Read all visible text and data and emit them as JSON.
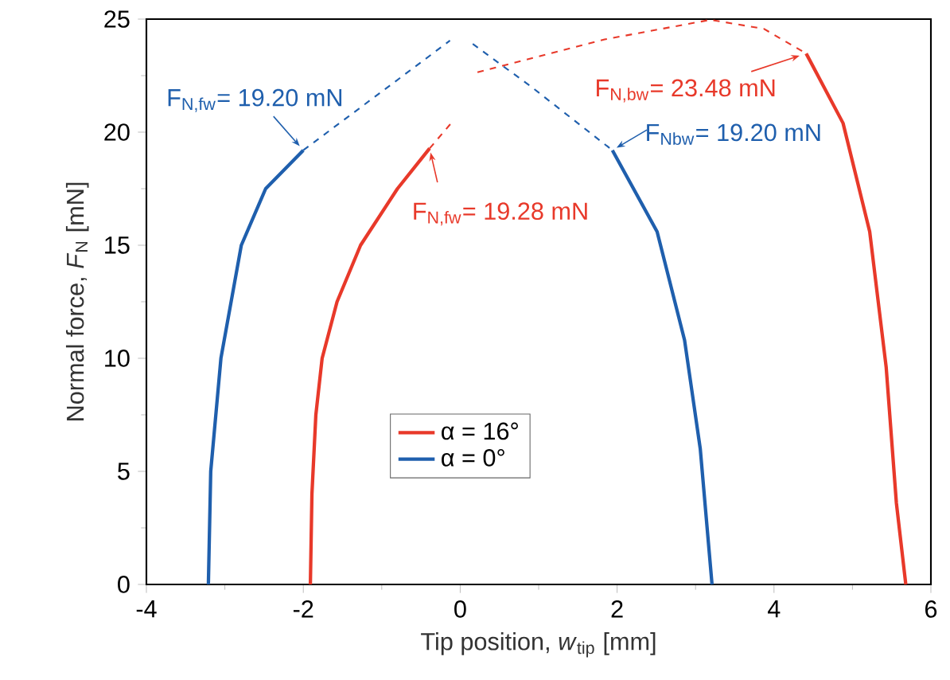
{
  "chart_data": {
    "type": "line",
    "xlabel": "Tip position, *w*$_{tip}$  [mm]",
    "ylabel": "Normal force, *F*$_{N}$  [mN]",
    "xlim": [
      -4,
      6
    ],
    "ylim": [
      0,
      25
    ],
    "xticks": [
      -4,
      -2,
      0,
      2,
      4,
      6
    ],
    "yticks": [
      0,
      5,
      10,
      15,
      20,
      25
    ],
    "legend": "bottom",
    "marker": "none",
    "grid": false,
    "series": [
      {
        "name": "α = 16°",
        "color": "#e8392a",
        "line_style": "solid",
        "x": [
          -1.91,
          -1.89,
          -1.84,
          -1.76,
          -1.57,
          -1.27,
          -0.8,
          -0.39
        ],
        "values": [
          0,
          4,
          7.5,
          10,
          12.5,
          15,
          17.5,
          19.28
        ]
      },
      {
        "color": "#e8392a",
        "line_style": "solid",
        "x": [
          4.41,
          4.88,
          5.22,
          5.43,
          5.56,
          5.68
        ],
        "values": [
          23.48,
          20.4,
          15.6,
          9.6,
          3.6,
          0
        ]
      },
      {
        "color": "#e8392a",
        "line_style": "dashed",
        "x": [
          -0.39,
          -0.09
        ],
        "values": [
          19.28,
          20.5
        ]
      },
      {
        "color": "#e8392a",
        "line_style": "dashed",
        "x": [
          0.22,
          1.84,
          3.19,
          3.87,
          4.41
        ],
        "values": [
          22.65,
          24.1,
          24.97,
          24.57,
          23.48
        ]
      },
      {
        "name": "α = 0°",
        "color": "#1f5fad",
        "line_style": "solid",
        "x": [
          -3.21,
          -3.18,
          -3.05,
          -2.79,
          -2.48,
          -2.0
        ],
        "values": [
          0,
          5,
          10,
          15,
          17.5,
          19.2
        ]
      },
      {
        "color": "#1f5fad",
        "line_style": "solid",
        "x": [
          1.94,
          2.51,
          2.86,
          3.06,
          3.21
        ],
        "values": [
          19.2,
          15.6,
          10.8,
          6.0,
          0
        ]
      },
      {
        "color": "#1f5fad",
        "line_style": "dashed",
        "x": [
          -2.0,
          -0.13
        ],
        "values": [
          19.2,
          24.05
        ]
      },
      {
        "color": "#1f5fad",
        "line_style": "dashed",
        "x": [
          0.16,
          0.89,
          1.94
        ],
        "values": [
          23.9,
          22.05,
          19.2
        ]
      }
    ],
    "annotations": [
      {
        "text": "F$_{N,fw}$= 19.20 mN",
        "x": -2.0,
        "y": 19.2
      },
      {
        "text": "F$_{N,fw}$= 19.28 mN",
        "x": -0.39,
        "y": 19.28
      },
      {
        "text": "F$_{N,bw}$= 23.48 mN",
        "x": 4.41,
        "y": 23.48
      },
      {
        "text": "F$_{Nbw}$= 19.20 mN",
        "x": 1.94,
        "y": 19.2
      }
    ]
  }
}
